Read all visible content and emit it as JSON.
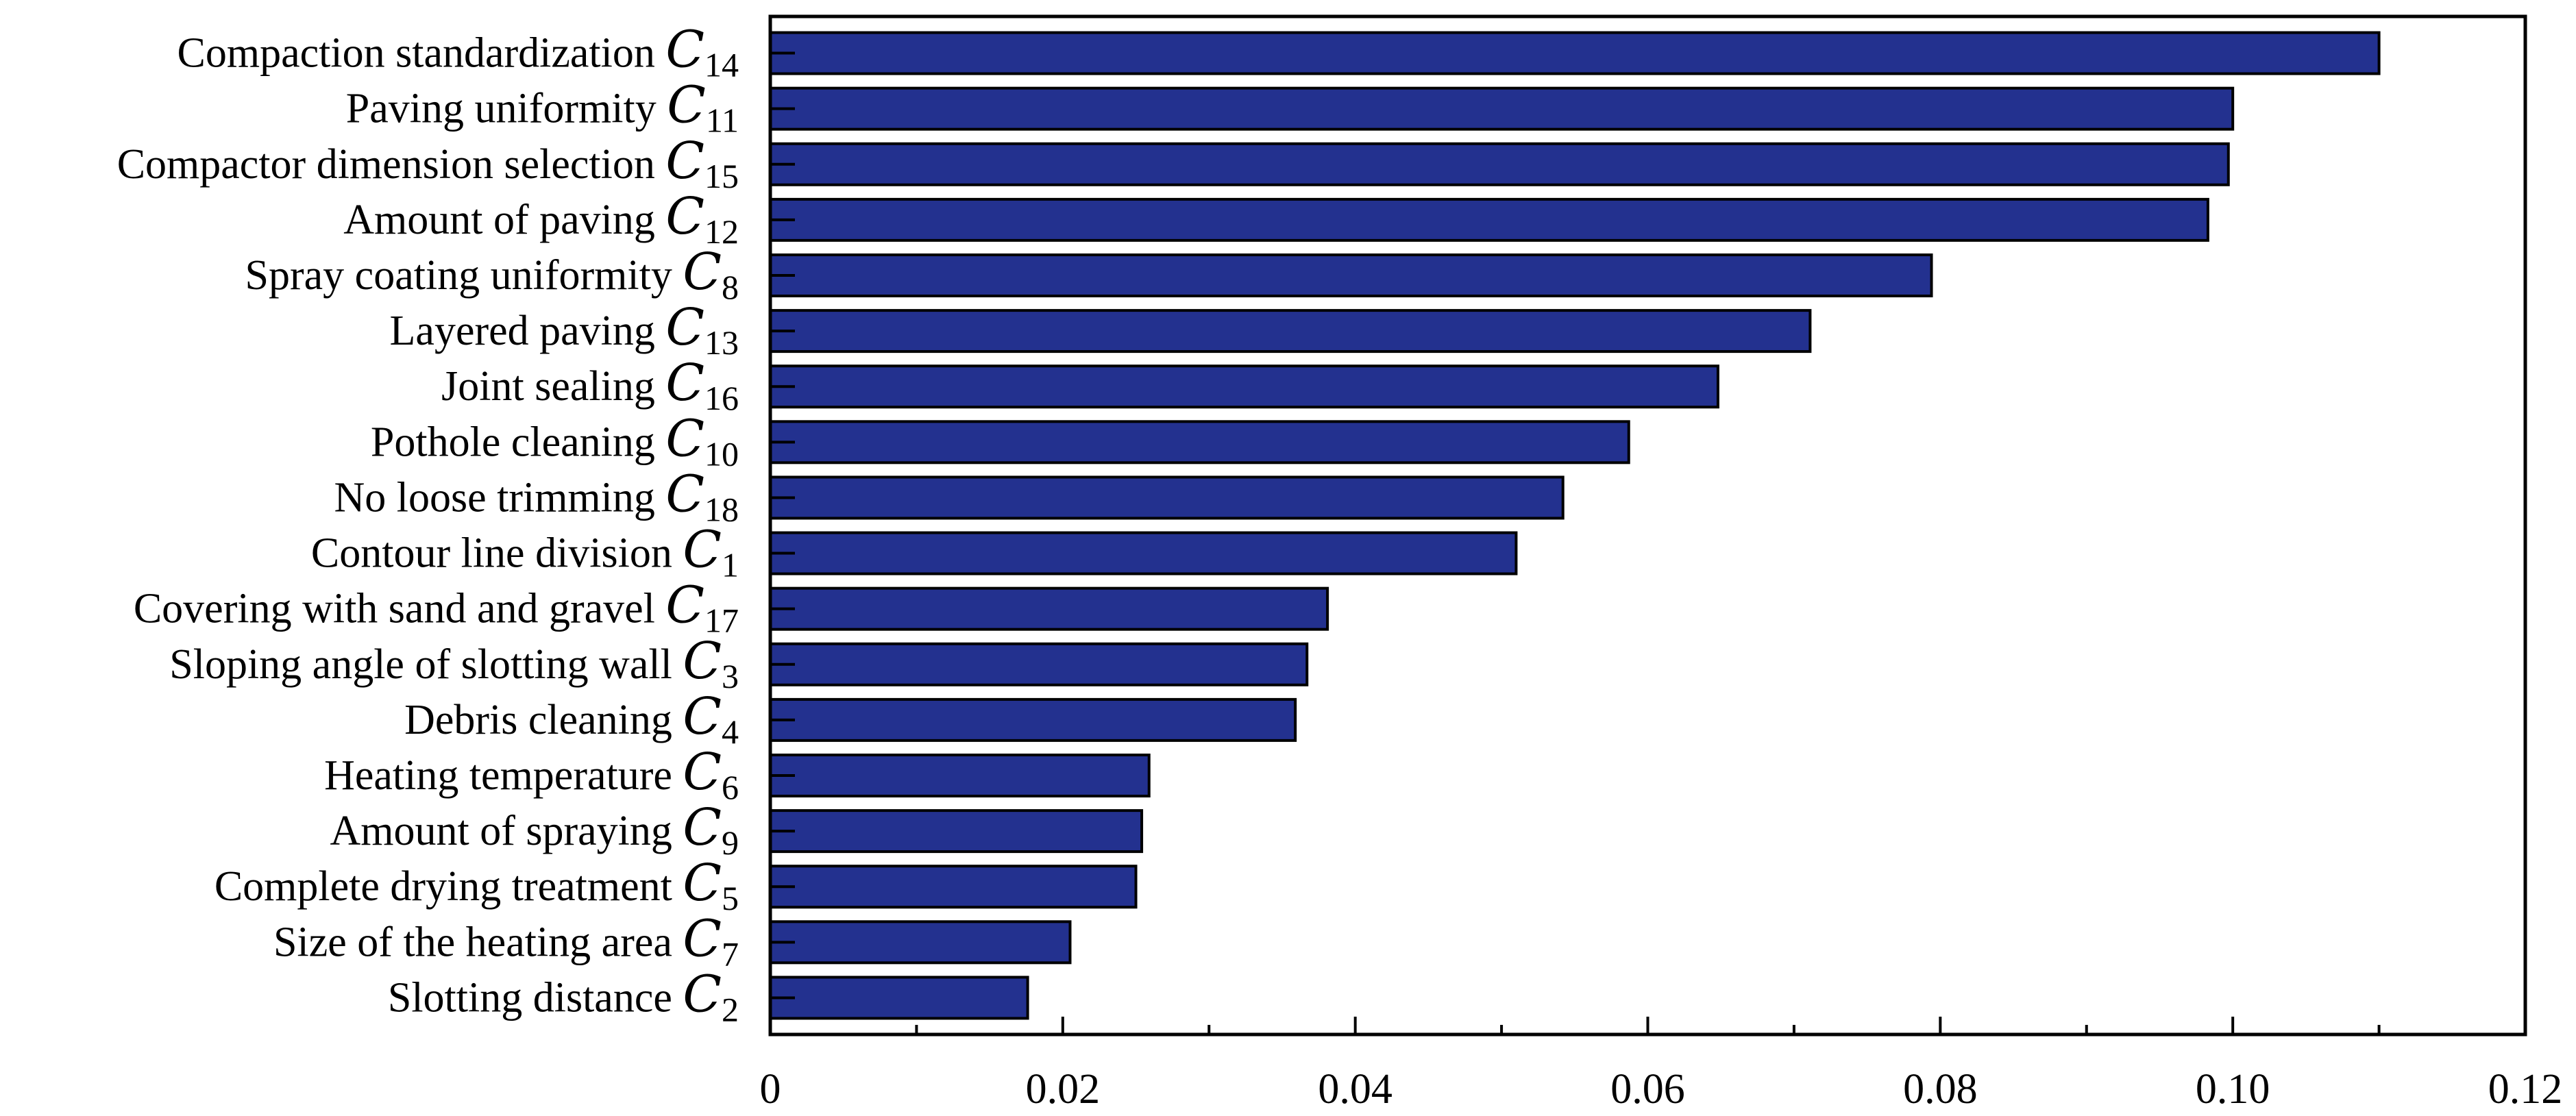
{
  "chart_data": {
    "type": "bar",
    "orientation": "horizontal",
    "title": "",
    "xlabel": "",
    "ylabel": "",
    "xlim": [
      0,
      0.12
    ],
    "x_ticks": [
      0,
      0.02,
      0.04,
      0.06,
      0.08,
      0.1,
      0.12
    ],
    "x_tick_labels": [
      "0",
      "0.02",
      "0.04",
      "0.06",
      "0.08",
      "0.10",
      "0.12"
    ],
    "grid": false,
    "legend": "none",
    "bar_color": "#23318f",
    "categories": [
      {
        "label": "Compaction standardization",
        "symbol": "C",
        "subscript": "14",
        "value": 0.11
      },
      {
        "label": "Paving uniformity",
        "symbol": "C",
        "subscript": "11",
        "value": 0.1
      },
      {
        "label": "Compactor dimension selection",
        "symbol": "C",
        "subscript": "15",
        "value": 0.0997
      },
      {
        "label": "Amount of paving",
        "symbol": "C",
        "subscript": "12",
        "value": 0.0983
      },
      {
        "label": "Spray coating uniformity",
        "symbol": "C",
        "subscript": "8",
        "value": 0.0794
      },
      {
        "label": "Layered paving",
        "symbol": "C",
        "subscript": "13",
        "value": 0.0711
      },
      {
        "label": "Joint sealing",
        "symbol": "C",
        "subscript": "16",
        "value": 0.0648
      },
      {
        "label": "Pothole cleaning",
        "symbol": "C",
        "subscript": "10",
        "value": 0.0587
      },
      {
        "label": "No loose trimming",
        "symbol": "C",
        "subscript": "18",
        "value": 0.0542
      },
      {
        "label": "Contour line division",
        "symbol": "C",
        "subscript": "1",
        "value": 0.051
      },
      {
        "label": "Covering with sand and gravel",
        "symbol": "C",
        "subscript": "17",
        "value": 0.0381
      },
      {
        "label": "Sloping angle of slotting wall",
        "symbol": "C",
        "subscript": "3",
        "value": 0.0367
      },
      {
        "label": "Debris cleaning",
        "symbol": "C",
        "subscript": "4",
        "value": 0.0359
      },
      {
        "label": "Heating temperature",
        "symbol": "C",
        "subscript": "6",
        "value": 0.0259
      },
      {
        "label": "Amount of spraying",
        "symbol": "C",
        "subscript": "9",
        "value": 0.0254
      },
      {
        "label": "Complete drying treatment",
        "symbol": "C",
        "subscript": "5",
        "value": 0.025
      },
      {
        "label": "Size of the heating area",
        "symbol": "C",
        "subscript": "7",
        "value": 0.0205
      },
      {
        "label": "Slotting distance",
        "symbol": "C",
        "subscript": "2",
        "value": 0.0176
      }
    ]
  }
}
